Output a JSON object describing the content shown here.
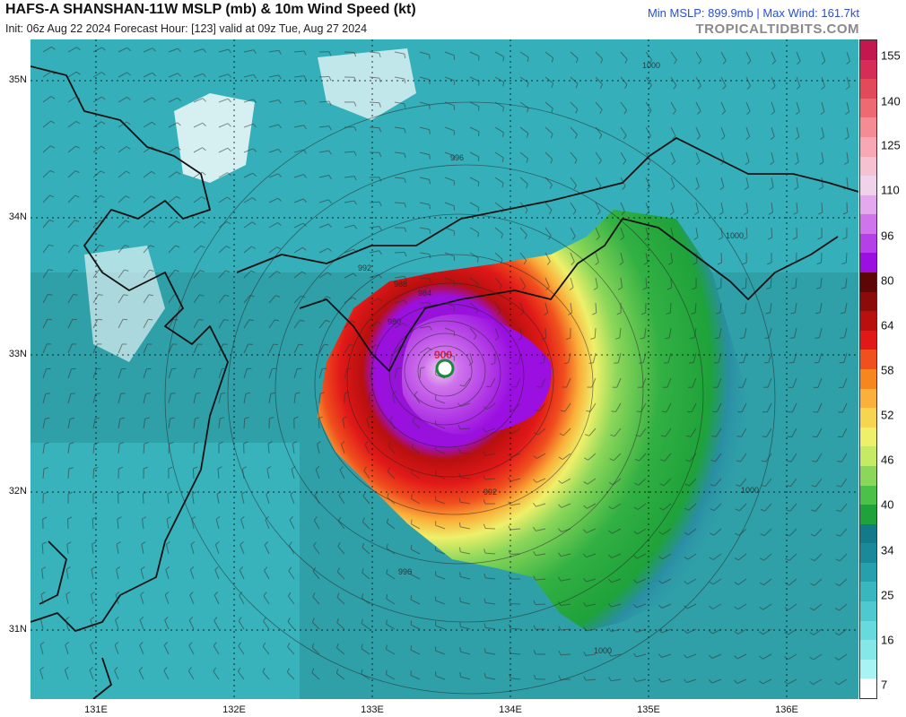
{
  "header": {
    "title": "HAFS-A SHANSHAN-11W MSLP (mb) & 10m Wind Speed (kt)",
    "subtitle": "Init: 06z Aug 22 2024   Forecast Hour: [123]   valid at 09z Tue, Aug 27 2024",
    "stats": "Min MSLP: 899.9mb | Max Wind: 161.7kt",
    "brand": "TROPICALTIDBITS.COM"
  },
  "map": {
    "lat_labels": [
      "35N",
      "34N",
      "33N",
      "32N",
      "31N"
    ],
    "lon_labels": [
      "131E",
      "132E",
      "133E",
      "134E",
      "135E",
      "136E"
    ],
    "pressure_labels": [
      "1000",
      "996",
      "992",
      "988",
      "984",
      "980",
      "900",
      "1000",
      "996",
      "992",
      "1000",
      "1000"
    ],
    "center_pressure_label": "900",
    "colors": {
      "land_outline": "#111111",
      "ocean_base": "#2f9fa8",
      "eye": "#8b1ac2"
    }
  },
  "colorbar": {
    "labels": [
      "155",
      "140",
      "125",
      "110",
      "96",
      "80",
      "64",
      "58",
      "52",
      "46",
      "40",
      "34",
      "25",
      "16",
      "7"
    ],
    "segments": [
      "#c2184f",
      "#d62d57",
      "#e24a5c",
      "#ee6a72",
      "#f58b93",
      "#f8a8b5",
      "#f6c2d2",
      "#f0d2ea",
      "#e3a8ee",
      "#cf74ec",
      "#b540e8",
      "#9b10e0",
      "#5c0606",
      "#8b0a0a",
      "#b80f0f",
      "#e01818",
      "#f0501e",
      "#f7861e",
      "#fab03a",
      "#f6d64e",
      "#eef06a",
      "#c7ea64",
      "#8cd75a",
      "#4cc14a",
      "#1ea23a",
      "#137a8a",
      "#1a8a9a",
      "#27a0ad",
      "#39b7bf",
      "#4ec9cf",
      "#66dadc",
      "#84e8e8",
      "#a8f4f4",
      "#ffffff"
    ]
  }
}
